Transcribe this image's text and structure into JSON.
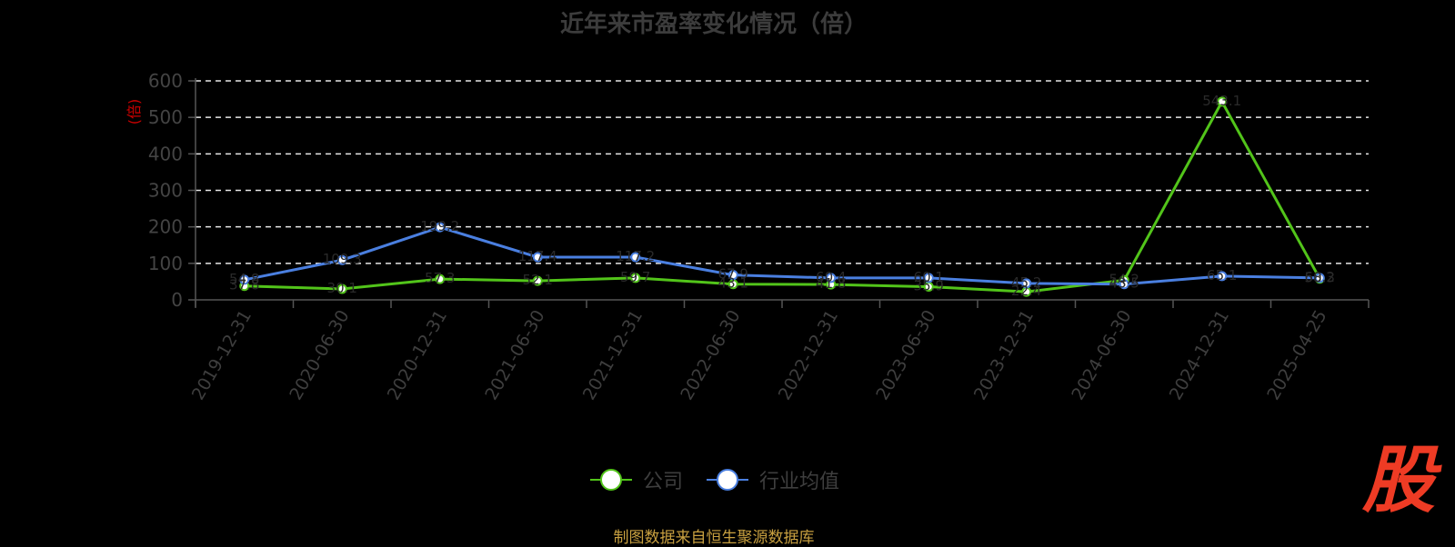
{
  "chart_data": {
    "type": "line",
    "title": "近年来市盈率变化情况（倍）",
    "ylabel": "(倍)",
    "xlabel": "",
    "categories": [
      "2019-12-31",
      "2020-06-30",
      "2020-12-31",
      "2021-06-30",
      "2021-12-31",
      "2022-06-30",
      "2022-12-31",
      "2023-06-30",
      "2023-12-31",
      "2024-06-30",
      "2024-12-31",
      "2025-04-25"
    ],
    "ylim": [
      0,
      600
    ],
    "yticks": [
      0,
      100,
      200,
      300,
      400,
      500,
      600
    ],
    "grid": true,
    "legend_position": "bottom",
    "series": [
      {
        "name": "公司",
        "color": "#52c41a",
        "values": [
          38,
          30,
          57,
          52,
          60,
          43,
          42,
          36,
          22,
          54,
          543,
          58
        ],
        "labels": [
          "37.8",
          "30.1",
          "57.3",
          "52.1",
          "59.7",
          "43.1",
          "41.8",
          "35.9",
          "22.4",
          "54.2",
          "543.1",
          "58.3"
        ]
      },
      {
        "name": "行业均值",
        "color": "#4a7fe0",
        "values": [
          55,
          109,
          199,
          117,
          117,
          68,
          60,
          60,
          45,
          43,
          65,
          60
        ],
        "labels": [
          "54.8",
          "109.3",
          "199.2",
          "117.4",
          "117.2",
          "67.9",
          "60.4",
          "60.1",
          "45.2",
          "43.5",
          "65.1",
          "60.2"
        ]
      }
    ]
  },
  "legend": {
    "company": "公司",
    "industry": "行业均值"
  },
  "source_note": "制图数据来自恒生聚源数据库",
  "watermark": {
    "text": "股",
    "color": "#ee3b24"
  }
}
